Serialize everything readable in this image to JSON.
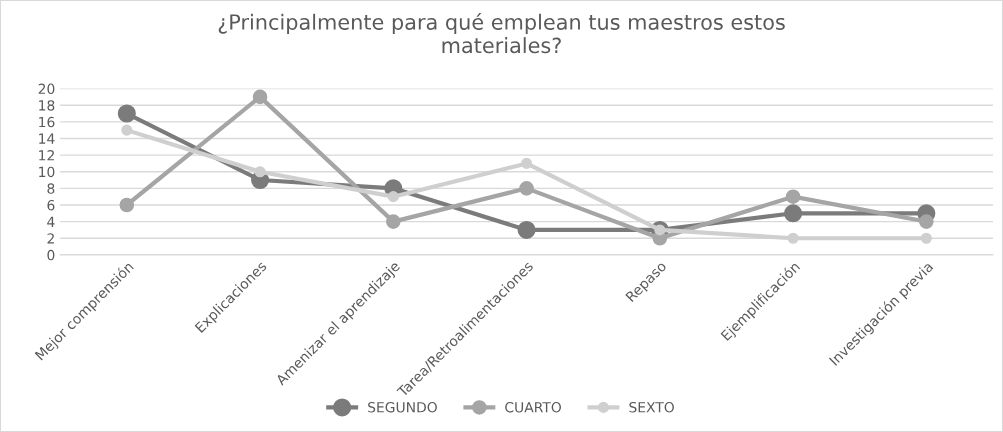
{
  "chart_data": {
    "type": "line",
    "title": "¿Principalmente para qué emplean tus maestros estos\nmateriales?",
    "categories": [
      "Mejor comprensión",
      "Explicaciones",
      "Amenizar el aprendizaje",
      "Tarea/Retroalimentaciones",
      "Repaso",
      "Ejemplificación",
      "Investigación previa"
    ],
    "series": [
      {
        "name": "SEGUNDO",
        "color": "#7b7b7b",
        "values": [
          17,
          9,
          8,
          3,
          3,
          5,
          5
        ]
      },
      {
        "name": "CUARTO",
        "color": "#a5a5a5",
        "values": [
          6,
          19,
          4,
          8,
          2,
          7,
          4
        ]
      },
      {
        "name": "SEXTO",
        "color": "#cfcfcf",
        "values": [
          15,
          10,
          7,
          11,
          3,
          2,
          2
        ]
      }
    ],
    "ylim": [
      0,
      20
    ],
    "yticks": [
      0,
      2,
      4,
      6,
      8,
      10,
      12,
      14,
      16,
      18,
      20
    ],
    "grid": "y",
    "legend": "bottom",
    "marker": "circle",
    "line_style": "solid"
  }
}
